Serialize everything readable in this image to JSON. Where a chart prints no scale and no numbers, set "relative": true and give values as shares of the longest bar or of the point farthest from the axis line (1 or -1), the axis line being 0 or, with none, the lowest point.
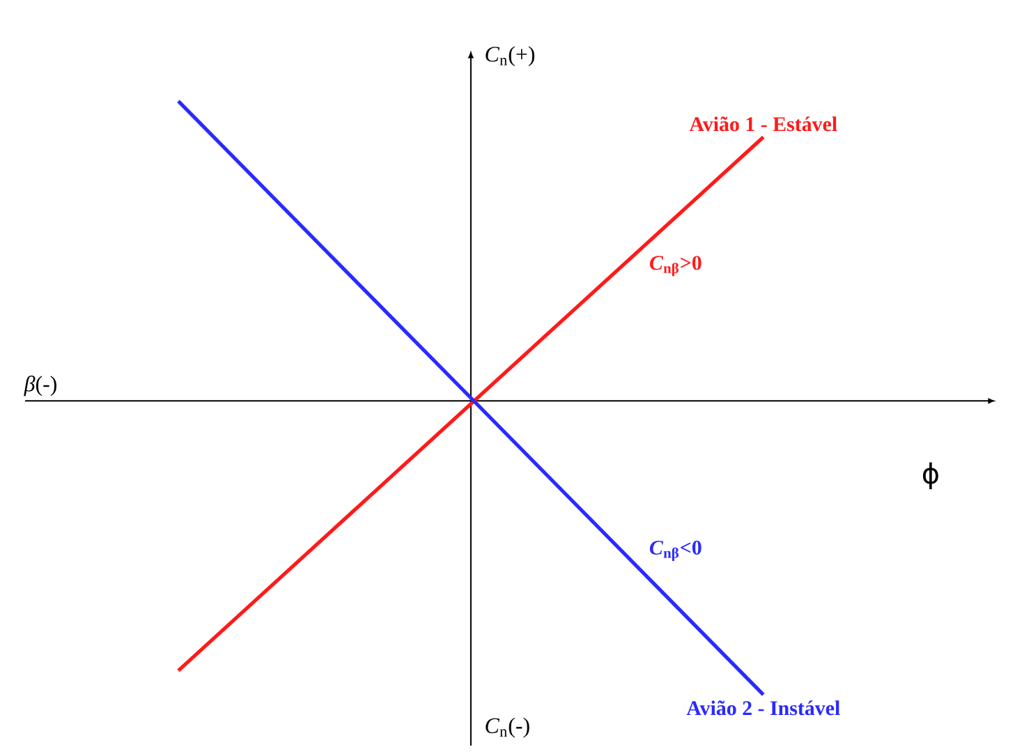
{
  "chart_data": {
    "type": "line",
    "relative": true,
    "legend": false,
    "xlabel": "ϕ",
    "categories": [
      null,
      null
    ],
    "series": [
      {
        "name": "Avião 1 - Estável",
        "color": "#ff1a1a",
        "values": [
          -0.9,
          0.88
        ]
      },
      {
        "name": "Avião 2 - Instável",
        "color": "#2a2aff",
        "values": [
          1.0,
          -0.98
        ]
      }
    ],
    "annotations": [
      "*β*(-)",
      "*C*$_{n}$(+)",
      "*C*$_{n}$(-)",
      "*C*$_{nβ}$>0",
      "*C*$_{nβ}$<0"
    ]
  }
}
